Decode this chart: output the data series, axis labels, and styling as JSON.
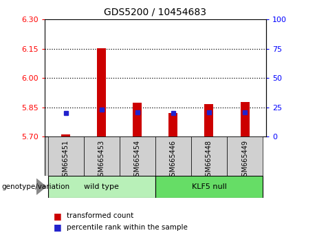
{
  "title": "GDS5200 / 10454683",
  "samples": [
    "GSM665451",
    "GSM665453",
    "GSM665454",
    "GSM665446",
    "GSM665448",
    "GSM665449"
  ],
  "red_values": [
    5.712,
    6.152,
    5.875,
    5.822,
    5.868,
    5.878
  ],
  "blue_values": [
    20,
    23,
    21,
    20,
    21,
    21
  ],
  "ylim_left": [
    5.7,
    6.3
  ],
  "ylim_right": [
    0,
    100
  ],
  "yticks_left": [
    5.7,
    5.85,
    6.0,
    6.15,
    6.3
  ],
  "yticks_right": [
    0,
    25,
    50,
    75,
    100
  ],
  "hlines": [
    5.85,
    6.0,
    6.15
  ],
  "groups": [
    {
      "label": "wild type",
      "indices": [
        0,
        1,
        2
      ]
    },
    {
      "label": "KLF5 null",
      "indices": [
        3,
        4,
        5
      ]
    }
  ],
  "group_colors": [
    "#b8f0b8",
    "#66dd66"
  ],
  "genotype_label": "genotype/variation",
  "legend_red": "transformed count",
  "legend_blue": "percentile rank within the sample",
  "bar_color_red": "#cc0000",
  "bar_color_blue": "#2222cc",
  "bar_bottom": 5.7,
  "bar_width": 0.25,
  "background_xlabel": "#d0d0d0"
}
